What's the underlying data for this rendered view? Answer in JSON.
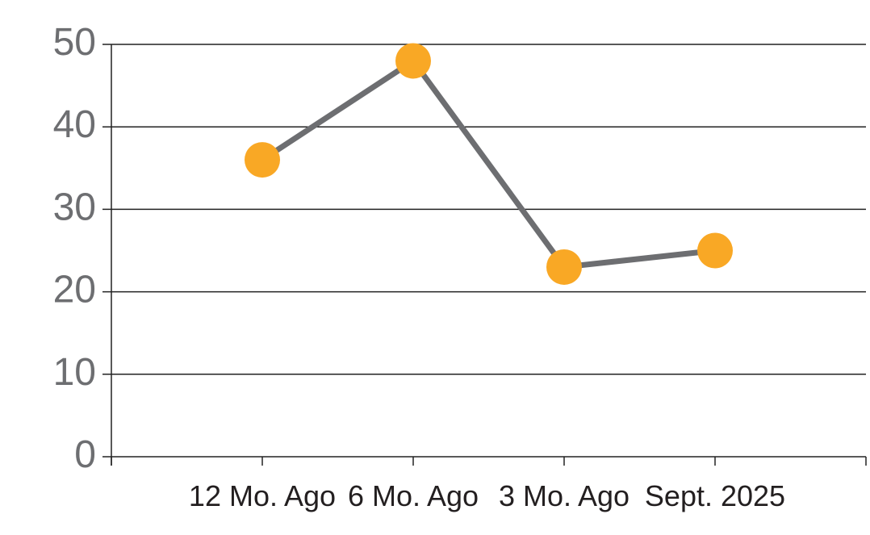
{
  "chart_data": {
    "type": "line",
    "categories": [
      "12 Mo. Ago",
      "6 Mo. Ago",
      "3 Mo. Ago",
      "Sept. 2025"
    ],
    "values": [
      36,
      48,
      23,
      25
    ],
    "series_name": "",
    "title": "",
    "xlabel": "",
    "ylabel": "",
    "ylim": [
      0,
      50
    ],
    "yticks": [
      0,
      10,
      20,
      30,
      40,
      50
    ],
    "grid": true,
    "legend": "none",
    "colors": {
      "line": "#6D6E71",
      "marker": "#F9A825",
      "grid_axis": "#222222",
      "y_tick_label": "#6D6E71",
      "x_tick_label": "#231F20",
      "background": "#FFFFFF"
    }
  }
}
